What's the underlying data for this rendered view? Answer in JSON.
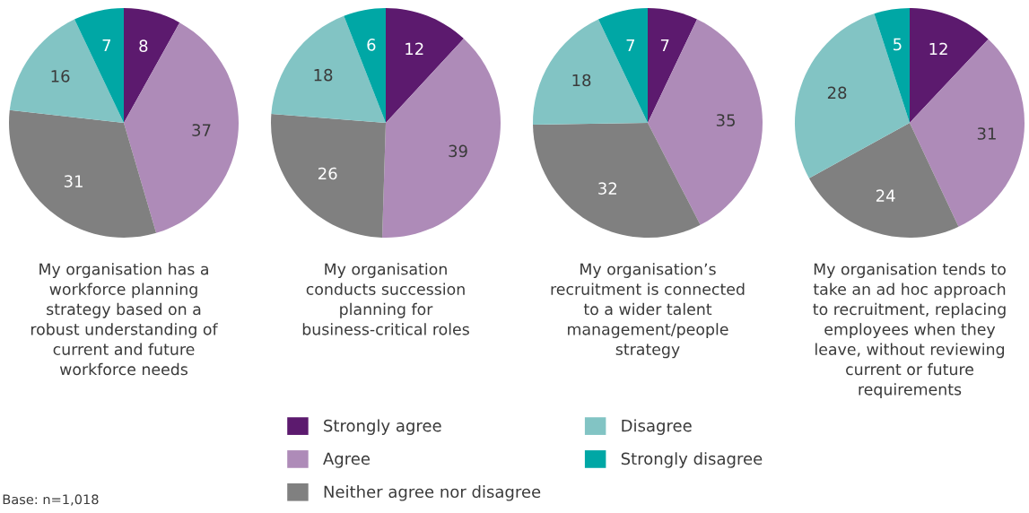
{
  "chart_data": [
    {
      "type": "pie",
      "xlabel": "My organisation has a\nworkforce planning\nstrategy based on a\nrobust understanding of\ncurrent and future\nworkforce needs",
      "categories": [
        "Strongly agree",
        "Agree",
        "Neither agree nor disagree",
        "Disagree",
        "Strongly disagree"
      ],
      "values": [
        8,
        37,
        31,
        16,
        7
      ],
      "colors": [
        "#5c1a6e",
        "#ae8bb8",
        "#808080",
        "#82c4c4",
        "#00a7a5"
      ],
      "data_labels": true,
      "legend": "bottom",
      "annotations": [
        "Base: n=1,018"
      ]
    },
    {
      "type": "pie",
      "xlabel": "My organisation\nconducts succession\nplanning for\nbusiness-critical roles",
      "categories": [
        null,
        null,
        null,
        null,
        null
      ],
      "values": [
        12,
        39,
        26,
        18,
        6
      ],
      "colors": [
        "#5c1a6e",
        "#ae8bb8",
        "#808080",
        "#82c4c4",
        "#00a7a5"
      ],
      "data_labels": true
    },
    {
      "type": "pie",
      "xlabel": "My organisation’s\nrecruitment is connected\nto a wider talent\nmanagement/people\nstrategy",
      "categories": [
        null,
        null,
        null,
        null,
        null
      ],
      "values": [
        7,
        35,
        32,
        18,
        7
      ],
      "colors": [
        "#5c1a6e",
        "#ae8bb8",
        "#808080",
        "#82c4c4",
        "#00a7a5"
      ],
      "data_labels": true
    },
    {
      "type": "pie",
      "xlabel": "My organisation tends to\ntake an ad hoc approach\nto recruitment, replacing\nemployees when they\nleave, without reviewing\ncurrent or future\nrequirements",
      "categories": [
        null,
        null,
        null,
        null,
        null
      ],
      "values": [
        12,
        31,
        24,
        28,
        5
      ],
      "colors": [
        "#5c1a6e",
        "#ae8bb8",
        "#808080",
        "#82c4c4",
        "#00a7a5"
      ],
      "data_labels": true
    }
  ]
}
